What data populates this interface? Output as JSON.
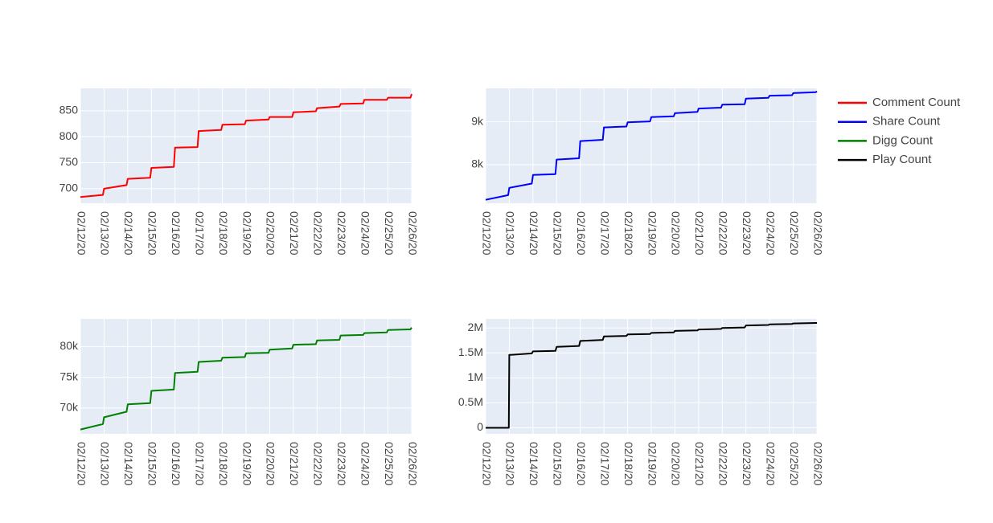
{
  "chart_data": [
    {
      "type": "line",
      "series": [
        {
          "name": "Comment Count",
          "color": "#ff0000"
        }
      ],
      "x": [
        "02/12/20",
        "02/13/20",
        "02/14/20",
        "02/15/20",
        "02/16/20",
        "02/17/20",
        "02/18/20",
        "02/19/20",
        "02/20/20",
        "02/21/20",
        "02/22/20",
        "02/23/20",
        "02/24/20",
        "02/25/20",
        "02/26/20"
      ],
      "points": [
        [
          0,
          684
        ],
        [
          0.95,
          688
        ],
        [
          1.0,
          700
        ],
        [
          1.95,
          707
        ],
        [
          2.0,
          719
        ],
        [
          2.95,
          721
        ],
        [
          3.0,
          740
        ],
        [
          3.95,
          742
        ],
        [
          4.0,
          779
        ],
        [
          4.95,
          780
        ],
        [
          5.0,
          811
        ],
        [
          5.95,
          813
        ],
        [
          6.0,
          823
        ],
        [
          6.95,
          824
        ],
        [
          7.0,
          831
        ],
        [
          7.95,
          833
        ],
        [
          8.0,
          838
        ],
        [
          8.95,
          838
        ],
        [
          9.0,
          847
        ],
        [
          9.95,
          849
        ],
        [
          10.0,
          855
        ],
        [
          10.95,
          858
        ],
        [
          11.0,
          863
        ],
        [
          11.95,
          864
        ],
        [
          12.0,
          871
        ],
        [
          12.95,
          871
        ],
        [
          13.0,
          875
        ],
        [
          13.95,
          875
        ],
        [
          14.0,
          882
        ]
      ],
      "yticks": [
        700,
        750,
        800,
        850
      ],
      "ytick_labels": [
        "700",
        "750",
        "800",
        "850"
      ],
      "ylim": [
        672,
        893
      ]
    },
    {
      "type": "line",
      "series": [
        {
          "name": "Share Count",
          "color": "#0000ff"
        }
      ],
      "x": [
        "02/12/20",
        "02/13/20",
        "02/14/20",
        "02/15/20",
        "02/16/20",
        "02/17/20",
        "02/18/20",
        "02/19/20",
        "02/20/20",
        "02/21/20",
        "02/22/20",
        "02/23/20",
        "02/24/20",
        "02/25/20",
        "02/26/20"
      ],
      "points": [
        [
          0,
          7180
        ],
        [
          0.95,
          7290
        ],
        [
          1.0,
          7460
        ],
        [
          1.95,
          7560
        ],
        [
          2.0,
          7760
        ],
        [
          2.95,
          7780
        ],
        [
          3.0,
          8120
        ],
        [
          3.95,
          8150
        ],
        [
          4.0,
          8550
        ],
        [
          4.95,
          8580
        ],
        [
          5.0,
          8870
        ],
        [
          5.95,
          8890
        ],
        [
          6.0,
          8990
        ],
        [
          6.95,
          9010
        ],
        [
          7.0,
          9110
        ],
        [
          7.95,
          9130
        ],
        [
          8.0,
          9200
        ],
        [
          8.95,
          9230
        ],
        [
          9.0,
          9310
        ],
        [
          9.95,
          9330
        ],
        [
          10.0,
          9400
        ],
        [
          10.95,
          9410
        ],
        [
          11.0,
          9540
        ],
        [
          11.95,
          9560
        ],
        [
          12.0,
          9610
        ],
        [
          12.95,
          9620
        ],
        [
          13.0,
          9670
        ],
        [
          13.95,
          9690
        ],
        [
          14.0,
          9710
        ]
      ],
      "yticks": [
        8000,
        9000
      ],
      "ytick_labels": [
        "8k",
        "9k"
      ],
      "ylim": [
        7100,
        9780
      ]
    },
    {
      "type": "line",
      "series": [
        {
          "name": "Digg Count",
          "color": "#008000"
        }
      ],
      "x": [
        "02/12/20",
        "02/13/20",
        "02/14/20",
        "02/15/20",
        "02/16/20",
        "02/17/20",
        "02/18/20",
        "02/19/20",
        "02/20/20",
        "02/21/20",
        "02/22/20",
        "02/23/20",
        "02/24/20",
        "02/25/20",
        "02/26/20"
      ],
      "points": [
        [
          0,
          66500
        ],
        [
          0.95,
          67400
        ],
        [
          1.0,
          68500
        ],
        [
          1.95,
          69400
        ],
        [
          2.0,
          70600
        ],
        [
          2.95,
          70800
        ],
        [
          3.0,
          72800
        ],
        [
          3.95,
          73000
        ],
        [
          4.0,
          75700
        ],
        [
          4.95,
          75900
        ],
        [
          5.0,
          77500
        ],
        [
          5.95,
          77700
        ],
        [
          6.0,
          78200
        ],
        [
          6.95,
          78300
        ],
        [
          7.0,
          78900
        ],
        [
          7.95,
          79000
        ],
        [
          8.0,
          79500
        ],
        [
          8.95,
          79700
        ],
        [
          9.0,
          80300
        ],
        [
          9.95,
          80400
        ],
        [
          10.0,
          81000
        ],
        [
          10.95,
          81100
        ],
        [
          11.0,
          81800
        ],
        [
          11.95,
          81900
        ],
        [
          12.0,
          82200
        ],
        [
          12.95,
          82300
        ],
        [
          13.0,
          82700
        ],
        [
          13.95,
          82800
        ],
        [
          14.0,
          83100
        ]
      ],
      "yticks": [
        70000,
        75000,
        80000
      ],
      "ytick_labels": [
        "70k",
        "75k",
        "80k"
      ],
      "ylim": [
        65800,
        84500
      ]
    },
    {
      "type": "line",
      "series": [
        {
          "name": "Play Count",
          "color": "#000000"
        }
      ],
      "x": [
        "02/12/20",
        "02/13/20",
        "02/14/20",
        "02/15/20",
        "02/16/20",
        "02/17/20",
        "02/18/20",
        "02/19/20",
        "02/20/20",
        "02/21/20",
        "02/22/20",
        "02/23/20",
        "02/24/20",
        "02/25/20",
        "02/26/20"
      ],
      "points": [
        [
          0,
          0
        ],
        [
          0.98,
          0
        ],
        [
          1.0,
          1460000
        ],
        [
          1.95,
          1490000
        ],
        [
          2.0,
          1530000
        ],
        [
          2.95,
          1540000
        ],
        [
          3.0,
          1620000
        ],
        [
          3.95,
          1640000
        ],
        [
          4.0,
          1740000
        ],
        [
          4.95,
          1760000
        ],
        [
          5.0,
          1830000
        ],
        [
          5.95,
          1840000
        ],
        [
          6.0,
          1870000
        ],
        [
          6.95,
          1880000
        ],
        [
          7.0,
          1900000
        ],
        [
          7.95,
          1910000
        ],
        [
          8.0,
          1940000
        ],
        [
          8.95,
          1950000
        ],
        [
          9.0,
          1970000
        ],
        [
          9.95,
          1980000
        ],
        [
          10.0,
          2000000
        ],
        [
          10.95,
          2010000
        ],
        [
          11.0,
          2050000
        ],
        [
          11.95,
          2060000
        ],
        [
          12.0,
          2070000
        ],
        [
          12.95,
          2080000
        ],
        [
          13.0,
          2090000
        ],
        [
          13.95,
          2100000
        ],
        [
          14.0,
          2100000
        ]
      ],
      "yticks": [
        0,
        500000,
        1000000,
        1500000,
        2000000
      ],
      "ytick_labels": [
        "0",
        "0.5M",
        "1M",
        "1.5M",
        "2M"
      ],
      "ylim": [
        -120000,
        2180000
      ]
    }
  ],
  "legend": {
    "placement": "top-right",
    "items": [
      {
        "label": "Comment Count",
        "color": "#ff0000"
      },
      {
        "label": "Share Count",
        "color": "#0000ff"
      },
      {
        "label": "Digg Count",
        "color": "#008000"
      },
      {
        "label": "Play Count",
        "color": "#000000"
      }
    ]
  },
  "colors": {
    "plot_bg": "#e5ecf6",
    "grid": "#ffffff",
    "text": "#444444"
  }
}
